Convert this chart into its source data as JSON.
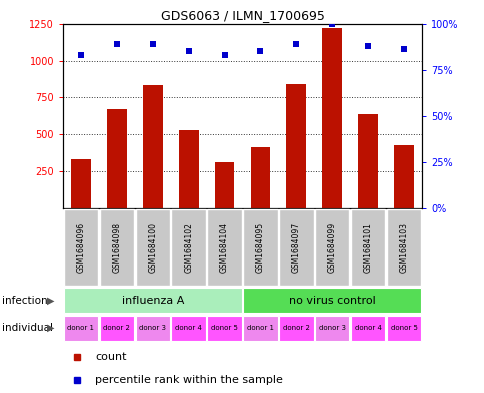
{
  "title": "GDS6063 / ILMN_1700695",
  "samples": [
    "GSM1684096",
    "GSM1684098",
    "GSM1684100",
    "GSM1684102",
    "GSM1684104",
    "GSM1684095",
    "GSM1684097",
    "GSM1684099",
    "GSM1684101",
    "GSM1684103"
  ],
  "counts": [
    335,
    670,
    835,
    530,
    315,
    415,
    840,
    1220,
    635,
    425
  ],
  "percentiles": [
    83,
    89,
    89,
    85,
    83,
    85,
    89,
    100,
    88,
    86
  ],
  "ylim_left": [
    0,
    1250
  ],
  "ylim_right": [
    0,
    100
  ],
  "yticks_left": [
    250,
    500,
    750,
    1000,
    1250
  ],
  "ytick_labels_left": [
    "250",
    "500",
    "750",
    "1000",
    "1250"
  ],
  "yticks_right": [
    0,
    25,
    50,
    75,
    100
  ],
  "ytick_labels_right": [
    "0%",
    "25%",
    "50%",
    "75%",
    "100%"
  ],
  "infection_groups": [
    {
      "label": "influenza A",
      "start": 0,
      "end": 5,
      "color": "#AAEEBB"
    },
    {
      "label": "no virus control",
      "start": 5,
      "end": 10,
      "color": "#55DD55"
    }
  ],
  "individual_labels": [
    "donor 1",
    "donor 2",
    "donor 3",
    "donor 4",
    "donor 5",
    "donor 1",
    "donor 2",
    "donor 3",
    "donor 4",
    "donor 5"
  ],
  "individual_colors": [
    "#EE88EE",
    "#FF55FF",
    "#EE88EE",
    "#FF55FF",
    "#FF55FF",
    "#EE88EE",
    "#FF55FF",
    "#EE88EE",
    "#FF55FF",
    "#FF55FF"
  ],
  "bar_color": "#BB1100",
  "dot_color": "#0000CC",
  "sample_bg_color": "#C8C8C8",
  "grid_color": "#333333",
  "legend_count_color": "#BB1100",
  "legend_pct_color": "#0000CC",
  "bar_width": 0.55
}
